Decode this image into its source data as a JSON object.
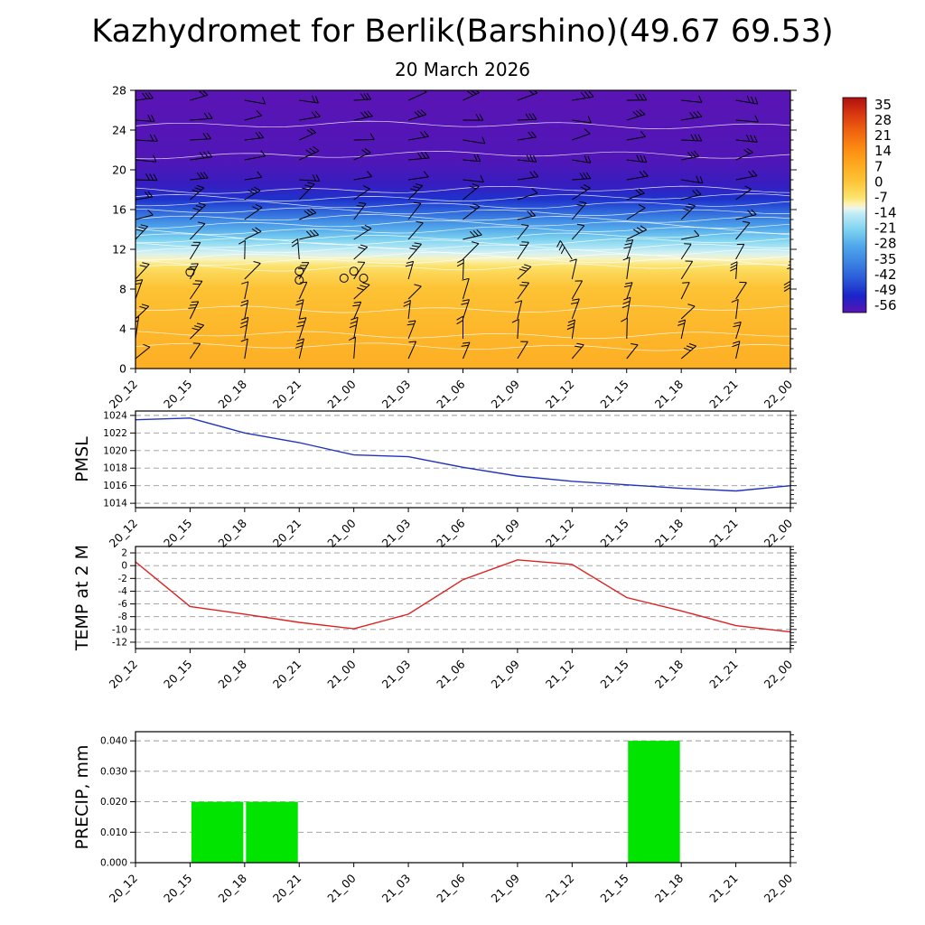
{
  "title": "Kazhydromet for Berlik(Barshino)(49.67 69.53)",
  "subtitle": "20 March 2026",
  "time_ticks": [
    "20_12",
    "20_15",
    "20_18",
    "20_21",
    "21_00",
    "21_03",
    "21_06",
    "21_09",
    "21_12",
    "21_15",
    "21_18",
    "21_21",
    "22_00"
  ],
  "colors": {
    "pmsl_line": "#2233bb",
    "temp_line": "#dd2222",
    "precip_bar": "#00e400",
    "grid": "#999999",
    "axis": "#000000"
  },
  "chart_data": [
    {
      "id": "cross_section",
      "type": "heatmap",
      "title": "20 March 2026",
      "description": "Time-height cross section: temperature shading with wind barbs and white contour lines",
      "x": [
        "20_12",
        "20_15",
        "20_18",
        "20_21",
        "21_00",
        "21_03",
        "21_06",
        "21_09",
        "21_12",
        "21_15",
        "21_18",
        "21_21",
        "22_00"
      ],
      "ylim": [
        0,
        28
      ],
      "yticks": [
        0,
        4,
        8,
        12,
        16,
        20,
        24,
        28
      ],
      "grid": "none",
      "temperature_profile": [
        {
          "level": 0,
          "temp": 5
        },
        {
          "level": 4,
          "temp": 3
        },
        {
          "level": 8,
          "temp": 0
        },
        {
          "level": 9.5,
          "temp": -4
        },
        {
          "level": 10.3,
          "temp": -7
        },
        {
          "level": 11,
          "temp": -10.5
        },
        {
          "level": 11.6,
          "temp": -13
        },
        {
          "level": 12.2,
          "temp": -16
        },
        {
          "level": 13,
          "temp": -21
        },
        {
          "level": 14,
          "temp": -27
        },
        {
          "level": 15,
          "temp": -34
        },
        {
          "level": 16,
          "temp": -41
        },
        {
          "level": 17,
          "temp": -47
        },
        {
          "level": 18.5,
          "temp": -52
        },
        {
          "level": 21,
          "temp": -55
        },
        {
          "level": 28,
          "temp": -56
        }
      ],
      "calm_circle_markers": [
        {
          "x_index": 1,
          "level": 9.7
        },
        {
          "x_index": 3,
          "level": 9.8
        },
        {
          "x_index": 3,
          "level": 8.9
        },
        {
          "x_index": 4,
          "level": 9.8
        },
        {
          "x_index": 4.18,
          "level": 9.1
        },
        {
          "x_index": 3.82,
          "level": 9.1
        }
      ],
      "colorbar": {
        "ticks": [
          35,
          28,
          21,
          14,
          7,
          0,
          -7,
          -14,
          -21,
          -28,
          -35,
          -42,
          -49,
          -56
        ],
        "scale": [
          {
            "temp": 35,
            "color": "#b01010"
          },
          {
            "temp": 28,
            "color": "#d83810"
          },
          {
            "temp": 21,
            "color": "#ef6210"
          },
          {
            "temp": 14,
            "color": "#fb8810"
          },
          {
            "temp": 7,
            "color": "#fda81e"
          },
          {
            "temp": 0,
            "color": "#fdc234"
          },
          {
            "temp": -7,
            "color": "#fce26a"
          },
          {
            "temp": -10,
            "color": "#fdf2ae"
          },
          {
            "temp": -12,
            "color": "#e9f5ef"
          },
          {
            "temp": -14,
            "color": "#c2ecf6"
          },
          {
            "temp": -21,
            "color": "#7dd2f0"
          },
          {
            "temp": -28,
            "color": "#4fa6ea"
          },
          {
            "temp": -35,
            "color": "#3b82e2"
          },
          {
            "temp": -42,
            "color": "#2a58d8"
          },
          {
            "temp": -49,
            "color": "#1b24c8"
          },
          {
            "temp": -56,
            "color": "#5a14b4"
          }
        ]
      }
    },
    {
      "id": "pmsl",
      "type": "line",
      "ylabel": "PMSL",
      "color": "#2233bb",
      "grid": "dashed-horizontal",
      "x": [
        "20_12",
        "20_15",
        "20_18",
        "20_21",
        "21_00",
        "21_03",
        "21_06",
        "21_09",
        "21_12",
        "21_15",
        "21_18",
        "21_21",
        "22_00"
      ],
      "values": [
        1023.5,
        1023.7,
        1022.0,
        1020.9,
        1019.5,
        1019.3,
        1018.1,
        1017.1,
        1016.5,
        1016.1,
        1015.7,
        1015.4,
        1016.0
      ],
      "ylim": [
        1013.5,
        1024.5
      ],
      "yticks": [
        1014,
        1016,
        1018,
        1020,
        1022,
        1024
      ],
      "minor_step": 0.5
    },
    {
      "id": "temp2m",
      "type": "line",
      "ylabel": "TEMP at 2 M",
      "color": "#dd2222",
      "grid": "dashed-horizontal",
      "x": [
        "20_12",
        "20_15",
        "20_18",
        "20_21",
        "21_00",
        "21_03",
        "21_06",
        "21_09",
        "21_12",
        "21_15",
        "21_18",
        "21_21",
        "22_00"
      ],
      "values": [
        0.6,
        -6.4,
        -7.6,
        -8.9,
        -9.9,
        -7.6,
        -2.2,
        0.9,
        0.2,
        -5.0,
        -7.1,
        -9.4,
        -10.4
      ],
      "ylim": [
        -13,
        3
      ],
      "yticks": [
        2,
        0,
        -2,
        -4,
        -6,
        -8,
        -10,
        -12
      ],
      "minor_step": 0.5
    },
    {
      "id": "precip",
      "type": "bar",
      "ylabel": "PRECIP, mm",
      "color": "#00e400",
      "grid": "dashed-horizontal",
      "x": [
        "20_12",
        "20_15",
        "20_18",
        "20_21",
        "21_00",
        "21_03",
        "21_06",
        "21_09",
        "21_12",
        "21_15",
        "21_18",
        "21_21",
        "22_00"
      ],
      "values": [
        0,
        0,
        0.02,
        0.02,
        0,
        0,
        0,
        0,
        0,
        0,
        0.04,
        0,
        0
      ],
      "ylim": [
        0,
        0.043
      ],
      "yticks": [
        0,
        0.01,
        0.02,
        0.03,
        0.04
      ],
      "ytick_labels": [
        "0.000",
        "0.010",
        "0.020",
        "0.030",
        "0.040"
      ],
      "minor_step": 0.002
    }
  ]
}
